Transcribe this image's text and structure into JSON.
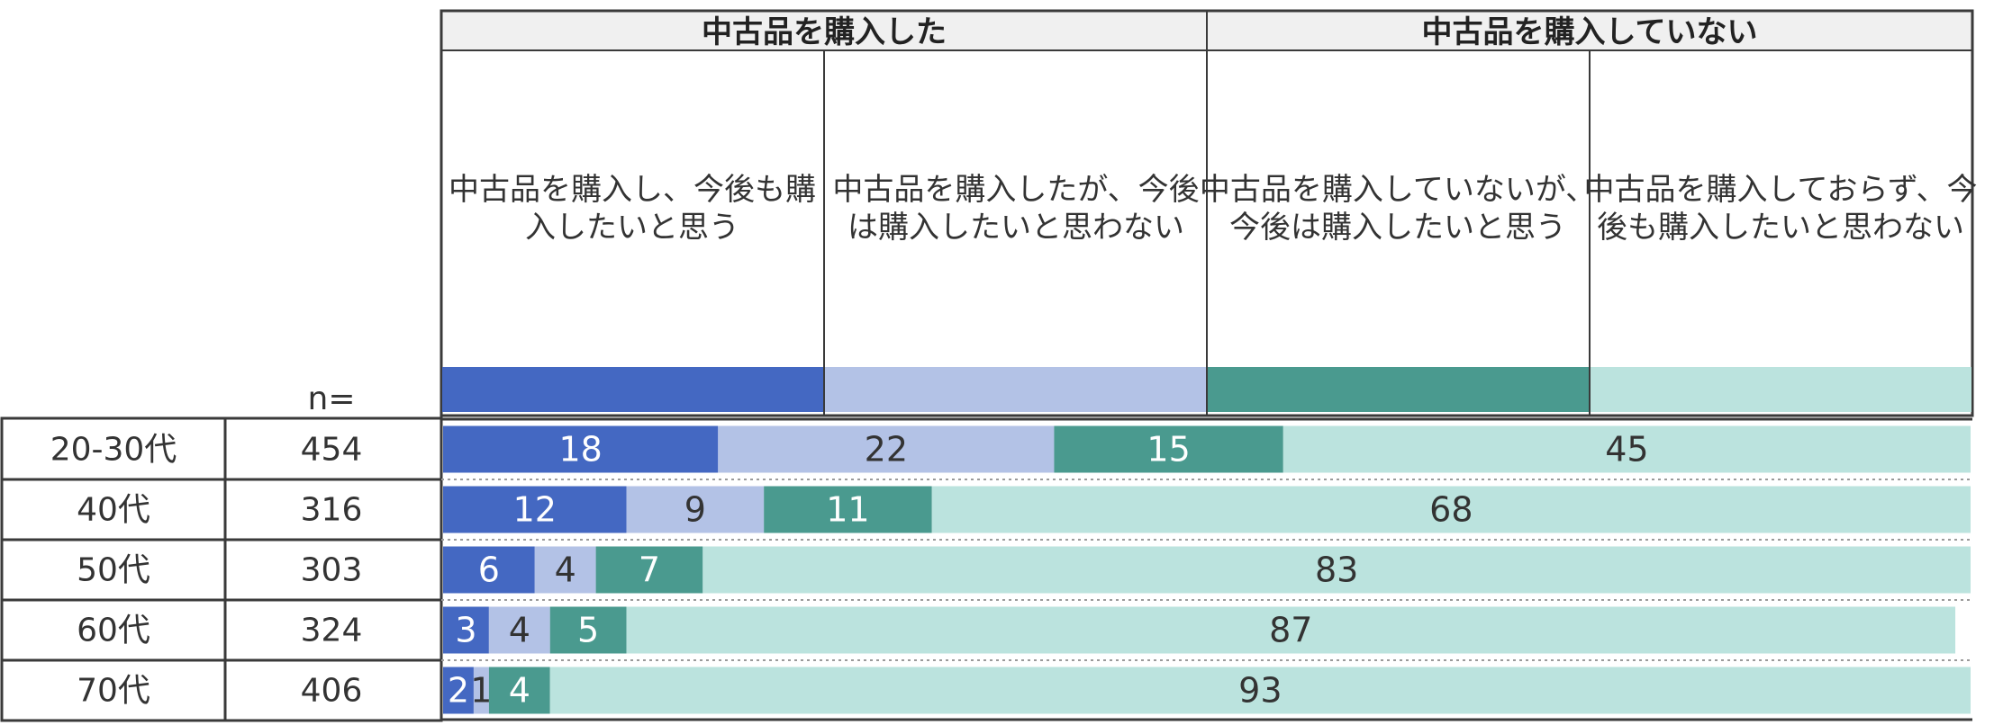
{
  "header": {
    "group_purchased": "中古品を購入した",
    "group_not_purchased": "中古品を購入していない",
    "categories": [
      [
        "中古品を購入し、今後も購",
        "入したいと思う"
      ],
      [
        "中古品を購入したが、今後",
        "は購入したいと思わない"
      ],
      [
        "中古品を購入していないが、",
        "今後は購入したいと思う"
      ],
      [
        "中古品を購入しておらず、今",
        "後も購入したいと思わない"
      ]
    ],
    "n_label": "n="
  },
  "colors": [
    "#4468c2",
    "#b3c2e6",
    "#4a9a8f",
    "#bbe3de"
  ],
  "label_colors": [
    "#ffffff",
    "#333333",
    "#ffffff",
    "#333333"
  ],
  "chart_data": {
    "type": "bar",
    "stacked": true,
    "orientation": "horizontal",
    "unit": "%",
    "categories": [
      "20-30代",
      "40代",
      "50代",
      "60代",
      "70代"
    ],
    "n": [
      "454",
      "316",
      "303",
      "324",
      "406"
    ],
    "series": [
      {
        "name": "中古品を購入し、今後も購入したいと思う",
        "values": [
          18,
          12,
          6,
          3,
          2
        ]
      },
      {
        "name": "中古品を購入したが、今後は購入したいと思わない",
        "values": [
          22,
          9,
          4,
          4,
          1
        ]
      },
      {
        "name": "中古品を購入していないが、今後は購入したいと思う",
        "values": [
          15,
          11,
          7,
          5,
          4
        ]
      },
      {
        "name": "中古品を購入しておらず、今後も購入したいと思わない",
        "values": [
          45,
          68,
          83,
          87,
          93
        ]
      }
    ]
  }
}
